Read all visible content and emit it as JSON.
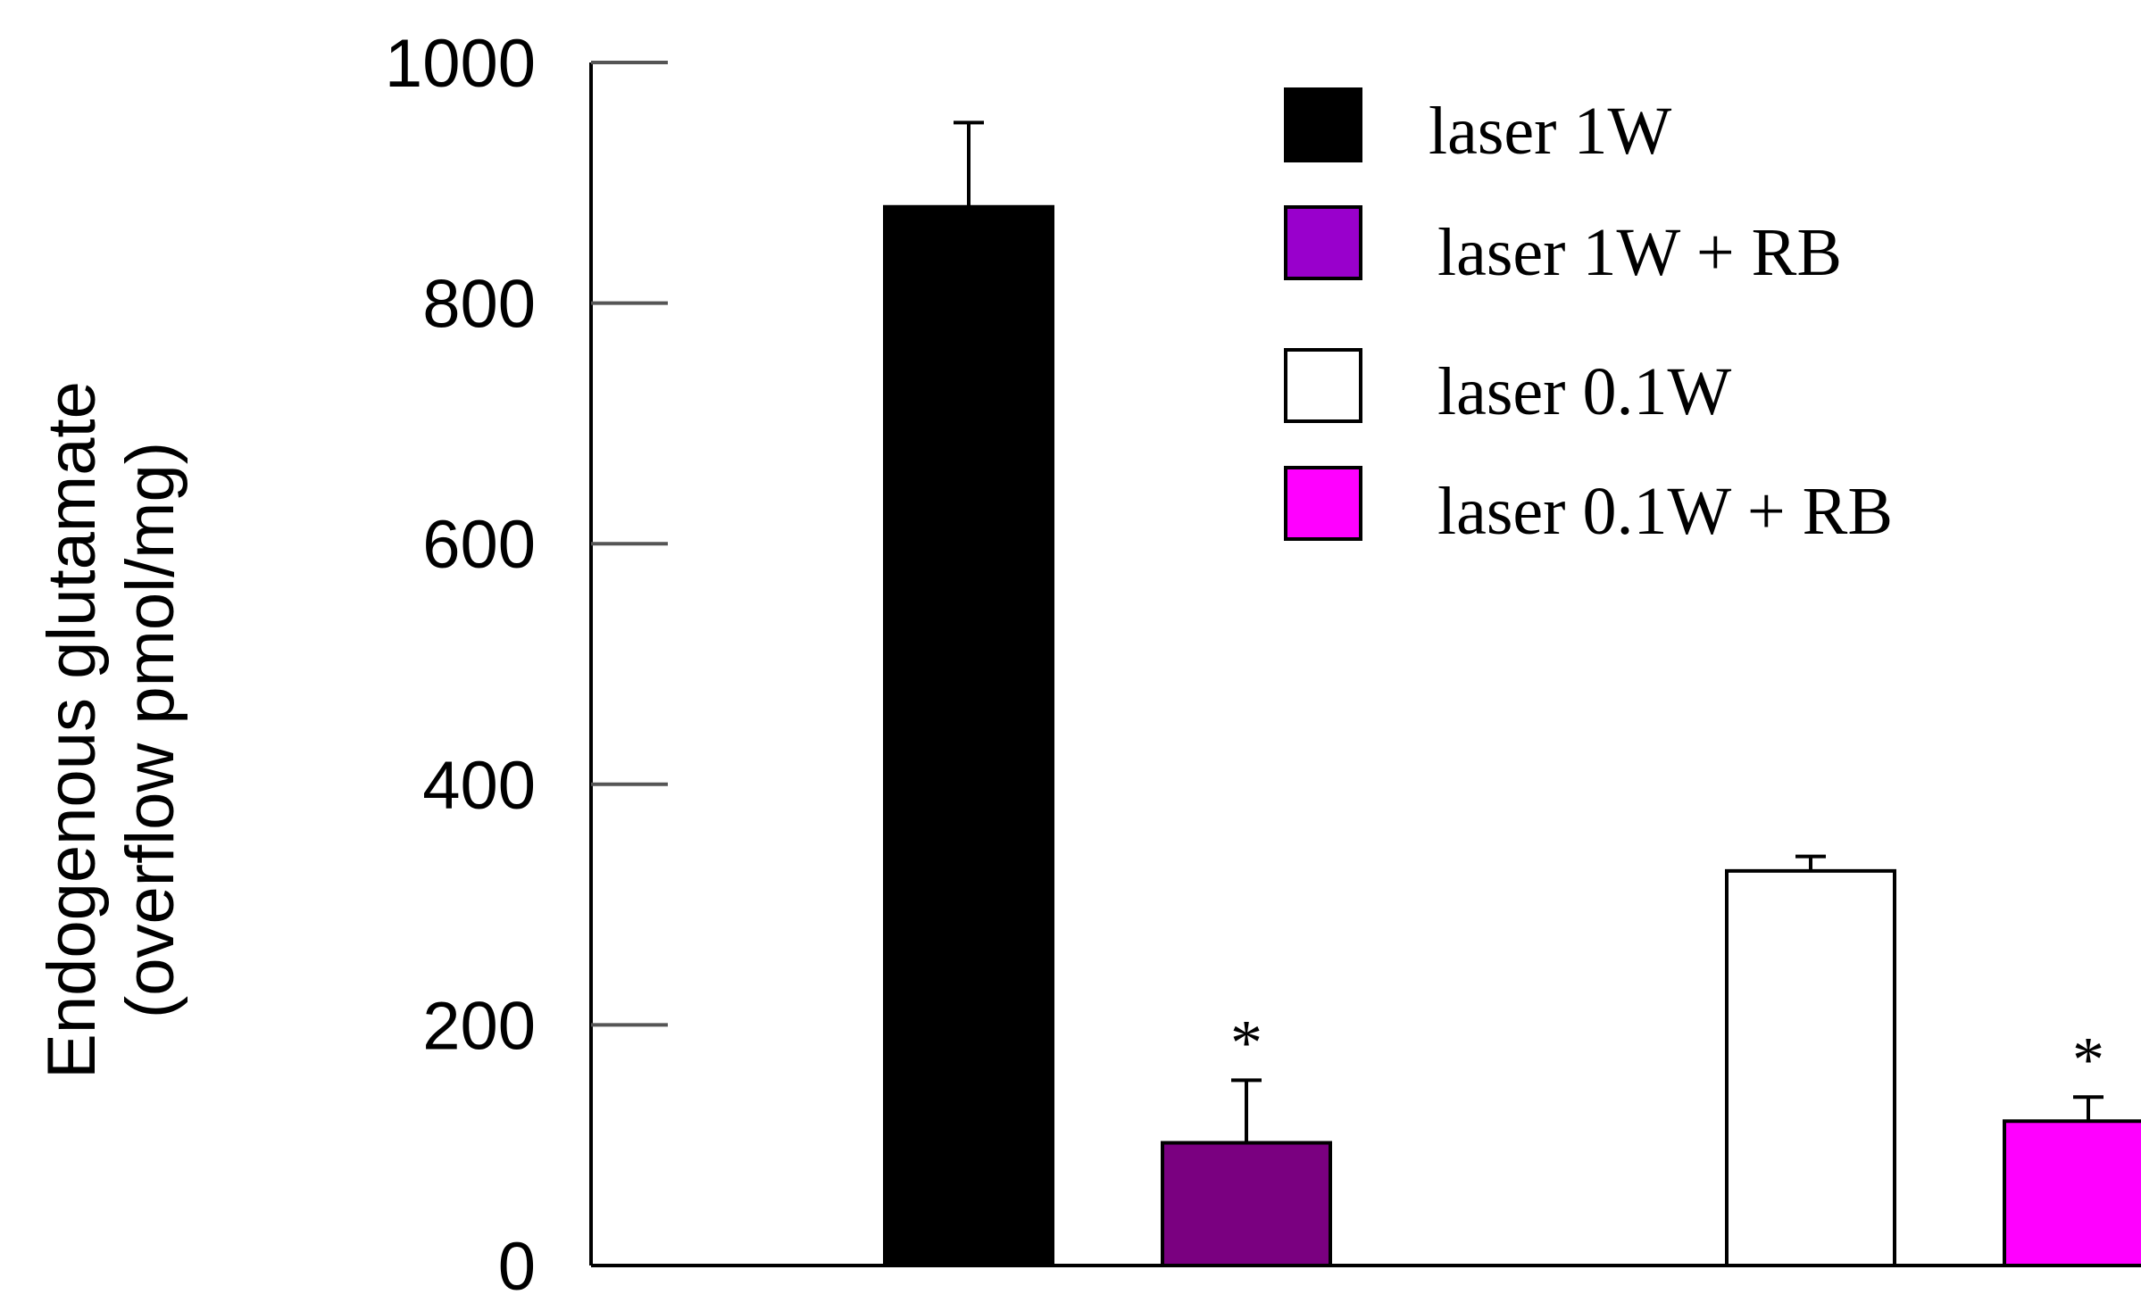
{
  "chart_data": {
    "type": "bar",
    "title": "",
    "xlabel": "",
    "ylabel_lines": [
      "Endogenous glutamate",
      "(overflow pmol/mg)"
    ],
    "ylim": [
      0,
      1000
    ],
    "yticks": [
      0,
      200,
      400,
      600,
      800,
      1000
    ],
    "ytick_labels": [
      "0",
      "200",
      "400",
      "600",
      "800",
      "1000"
    ],
    "grid": false,
    "legend_position": "top-right",
    "series": [
      {
        "name": "laser 1W",
        "value": 880,
        "error": 70,
        "color": "#000000",
        "annotation": ""
      },
      {
        "name": "laser 1W + RB",
        "value": 102,
        "error": 52,
        "color": "#7a0080",
        "annotation": "*"
      },
      {
        "name": "laser 0.1W",
        "value": 328,
        "error": 12,
        "color": "#ffffff",
        "annotation": ""
      },
      {
        "name": "laser 0.1W + RB",
        "value": 120,
        "error": 20,
        "color": "#ff00ff",
        "annotation": "*"
      }
    ],
    "legend_colors": [
      "#000000",
      "#9900cc",
      "#ffffff",
      "#ff00ff"
    ]
  }
}
